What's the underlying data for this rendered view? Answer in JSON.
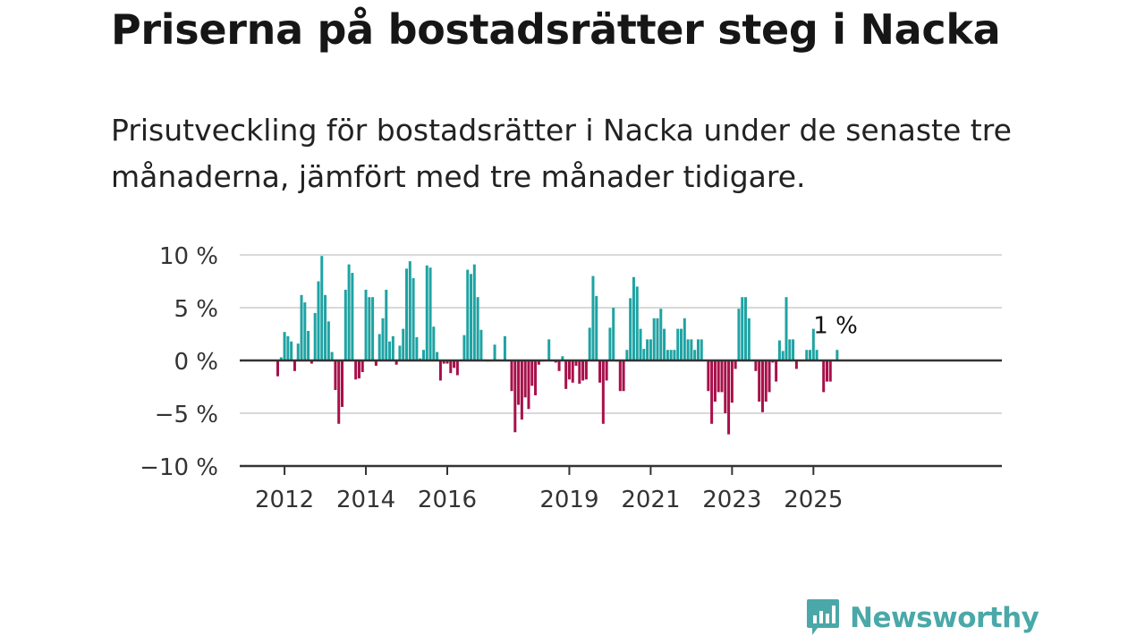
{
  "title": "Priserna på bostadsrätter steg i Nacka",
  "subtitle": "Prisutveckling för bostadsrätter i Nacka under de senaste tre månaderna, jämfört med tre månader tidigare.",
  "brand": {
    "name": "Newsworthy",
    "color": "#4aa8a8"
  },
  "chart_data": {
    "type": "bar",
    "title": "",
    "xlabel": "",
    "ylabel": "",
    "ylim": [
      -10,
      10
    ],
    "yticks": [
      10,
      5,
      0,
      -5,
      -10
    ],
    "ytick_labels": [
      "10 %",
      "5 %",
      "0 %",
      "−5 %",
      "−10 %"
    ],
    "xticks": [
      "2012",
      "2014",
      "2016",
      "2019",
      "2021",
      "2023",
      "2025"
    ],
    "grid": true,
    "colors": {
      "positive": "#1fa3a3",
      "negative": "#a8104a"
    },
    "annotation": {
      "text": "1 %",
      "x": "2025-07"
    },
    "x_start": "2011-11",
    "x_end": "2025-07",
    "values": [
      -1.5,
      0.3,
      2.7,
      2.3,
      1.8,
      -1.0,
      1.6,
      6.2,
      5.5,
      2.8,
      -0.3,
      4.5,
      7.5,
      9.9,
      6.2,
      3.7,
      0.8,
      -2.8,
      -6.0,
      -4.4,
      6.7,
      9.1,
      8.3,
      -1.8,
      -1.7,
      -1.1,
      6.7,
      6.0,
      6.0,
      -0.5,
      2.5,
      4.0,
      6.7,
      1.8,
      2.3,
      -0.4,
      1.4,
      3.0,
      8.7,
      9.4,
      7.8,
      2.2,
      0.2,
      1.0,
      9.0,
      8.8,
      3.2,
      0.8,
      -1.9,
      -0.3,
      -0.3,
      -1.2,
      -0.7,
      -1.4,
      0.1,
      2.4,
      8.6,
      8.2,
      9.1,
      6.0,
      2.9,
      0.1,
      -0.1,
      0.0,
      1.5,
      0.1,
      0.0,
      2.3,
      0.0,
      -2.9,
      -6.8,
      -4.2,
      -5.6,
      -3.5,
      -4.6,
      -2.4,
      -3.3,
      -0.4,
      -0.1,
      0.0,
      2.0,
      0.0,
      -0.2,
      -1.0,
      0.4,
      -2.7,
      -1.8,
      -2.1,
      -0.5,
      -2.2,
      -1.9,
      -1.8,
      3.1,
      8.0,
      6.1,
      -2.1,
      -6.0,
      -1.9,
      3.1,
      5.0,
      -0.1,
      -2.9,
      -2.9,
      1.0,
      5.9,
      7.9,
      7.0,
      3.0,
      1.1,
      2.0,
      2.0,
      4.0,
      4.0,
      4.9,
      3.0,
      1.0,
      1.0,
      1.0,
      3.0,
      3.0,
      4.0,
      2.0,
      2.0,
      1.0,
      2.0,
      2.0,
      0.0,
      -2.9,
      -6.0,
      -3.9,
      -3.0,
      -3.0,
      -5.0,
      -7.0,
      -4.0,
      -0.8,
      4.9,
      6.0,
      6.0,
      4.0,
      0.0,
      -1.0,
      -3.9,
      -4.9,
      -3.9,
      -3.0,
      -0.2,
      -2.0,
      1.9,
      0.9,
      6.0,
      2.0,
      2.0,
      -0.8,
      0.0,
      0.0,
      1.0,
      1.0,
      3.0,
      1.0,
      0.0,
      -3.0,
      -2.0,
      -2.0,
      0.0,
      1.0
    ]
  }
}
